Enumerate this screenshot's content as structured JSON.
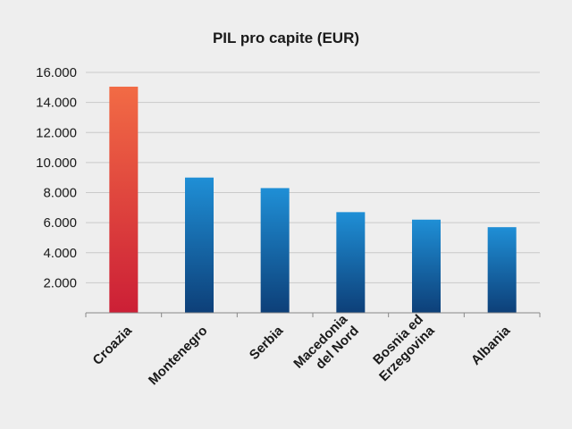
{
  "chart_data": {
    "type": "bar",
    "title": "PIL pro capite (EUR)",
    "categories": [
      [
        "Croazia"
      ],
      [
        "Montenegro"
      ],
      [
        "Serbia"
      ],
      [
        "Macedonia",
        "del Nord"
      ],
      [
        "Bosnia ed",
        "Erzegovina"
      ],
      [
        "Albania"
      ]
    ],
    "values": [
      15050,
      9000,
      8300,
      6700,
      6200,
      5700
    ],
    "ylim": [
      0,
      16000
    ],
    "yticks": [
      2000,
      4000,
      6000,
      8000,
      10000,
      12000,
      14000,
      16000
    ],
    "ytick_labels": [
      "2.000",
      "4.000",
      "6.000",
      "8.000",
      "10.000",
      "12.000",
      "14.000",
      "16.000"
    ],
    "grid": true,
    "colors": {
      "highlight_top": "#f26b45",
      "highlight_bottom": "#cc1f36",
      "bar_top": "#1f8fd6",
      "bar_bottom": "#0d3f78",
      "background": "#eeeeee"
    },
    "highlight_index": 0
  }
}
